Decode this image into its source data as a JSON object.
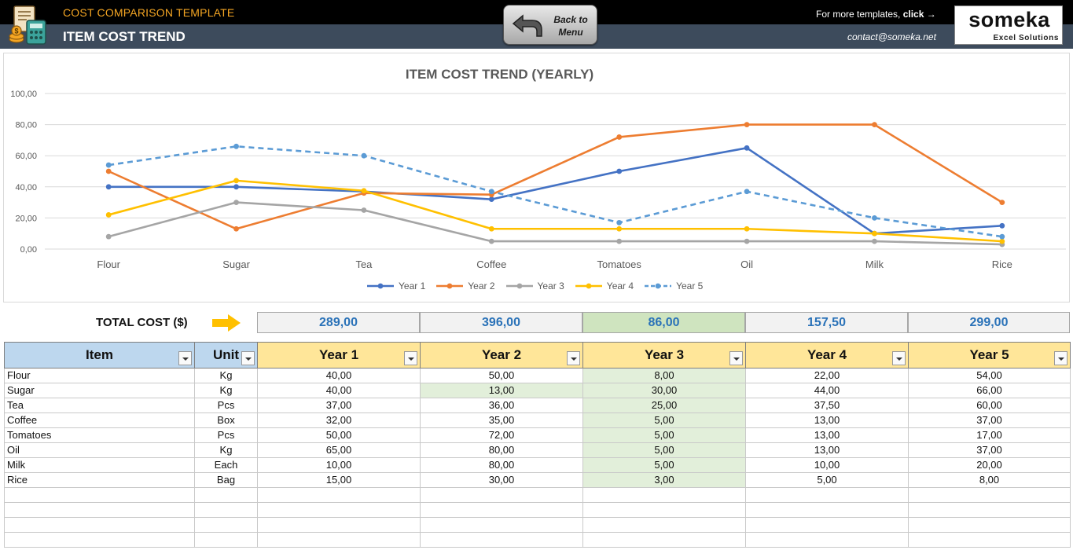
{
  "header": {
    "subtitle": "COST COMPARISON TEMPLATE",
    "title": "ITEM COST TREND",
    "back_button": "Back to Menu",
    "more_templates_prefix": "For more templates, ",
    "more_templates_link": "click →",
    "contact": "contact@someka.net",
    "brand_name": "someka",
    "brand_sub": "Excel Solutions"
  },
  "chart_data": {
    "type": "line",
    "title": "ITEM COST TREND (YEARLY)",
    "categories": [
      "Flour",
      "Sugar",
      "Tea",
      "Coffee",
      "Tomatoes",
      "Oil",
      "Milk",
      "Rice"
    ],
    "yticks": [
      "100,00",
      "80,00",
      "60,00",
      "40,00",
      "20,00",
      "0,00"
    ],
    "ylim": [
      0,
      100
    ],
    "grid": true,
    "legend_position": "bottom",
    "series": [
      {
        "name": "Year 1",
        "color": "#4472c4",
        "dashed": false,
        "values": [
          40,
          40,
          37,
          32,
          50,
          65,
          10,
          15
        ]
      },
      {
        "name": "Year 2",
        "color": "#ed7d31",
        "dashed": false,
        "values": [
          50,
          13,
          36,
          35,
          72,
          80,
          80,
          30
        ]
      },
      {
        "name": "Year 3",
        "color": "#a5a5a5",
        "dashed": false,
        "values": [
          8,
          30,
          25,
          5,
          5,
          5,
          5,
          3
        ]
      },
      {
        "name": "Year 4",
        "color": "#ffc000",
        "dashed": false,
        "values": [
          22,
          44,
          37.5,
          13,
          13,
          13,
          10,
          5
        ]
      },
      {
        "name": "Year 5",
        "color": "#5b9bd5",
        "dashed": true,
        "values": [
          54,
          66,
          60,
          37,
          17,
          37,
          20,
          8
        ]
      }
    ]
  },
  "totals": {
    "label": "TOTAL COST ($)",
    "values": [
      "289,00",
      "396,00",
      "86,00",
      "157,50",
      "299,00"
    ],
    "highlight_index": 2
  },
  "table": {
    "headers": [
      "Item",
      "Unit",
      "Year 1",
      "Year 2",
      "Year 3",
      "Year 4",
      "Year 5"
    ],
    "rows": [
      [
        "Flour",
        "Kg",
        "40,00",
        "50,00",
        "8,00",
        "22,00",
        "54,00"
      ],
      [
        "Sugar",
        "Kg",
        "40,00",
        "13,00",
        "30,00",
        "44,00",
        "66,00"
      ],
      [
        "Tea",
        "Pcs",
        "37,00",
        "36,00",
        "25,00",
        "37,50",
        "60,00"
      ],
      [
        "Coffee",
        "Box",
        "32,00",
        "35,00",
        "5,00",
        "13,00",
        "37,00"
      ],
      [
        "Tomatoes",
        "Pcs",
        "50,00",
        "72,00",
        "5,00",
        "13,00",
        "17,00"
      ],
      [
        "Oil",
        "Kg",
        "65,00",
        "80,00",
        "5,00",
        "13,00",
        "37,00"
      ],
      [
        "Milk",
        "Each",
        "10,00",
        "80,00",
        "5,00",
        "10,00",
        "20,00"
      ],
      [
        "Rice",
        "Bag",
        "15,00",
        "30,00",
        "3,00",
        "5,00",
        "8,00"
      ]
    ],
    "highlighted_cells": [
      [
        1,
        3
      ],
      [
        0,
        4
      ],
      [
        1,
        4
      ],
      [
        2,
        4
      ],
      [
        3,
        4
      ],
      [
        4,
        4
      ],
      [
        5,
        4
      ],
      [
        6,
        4
      ],
      [
        7,
        4
      ]
    ],
    "empty_rows": 4
  }
}
